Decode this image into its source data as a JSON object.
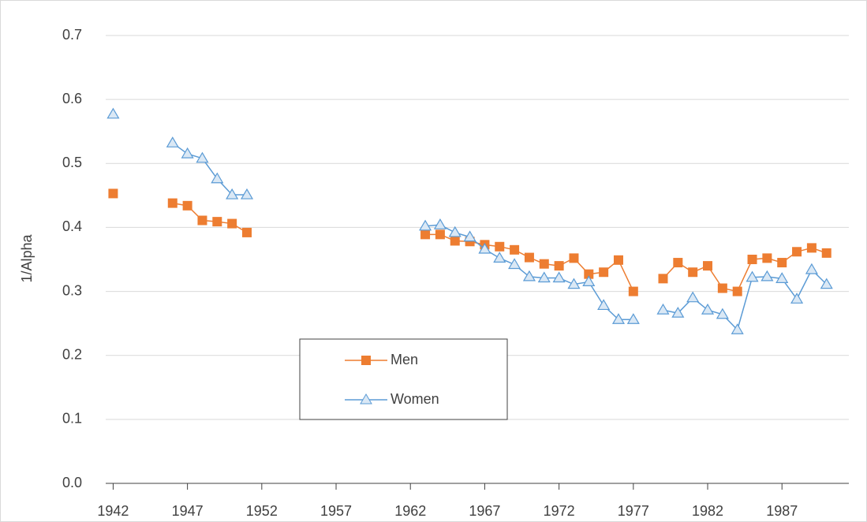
{
  "chart_data": {
    "type": "line",
    "y_label": "1/Alpha",
    "x": [
      1942,
      1943,
      1944,
      1945,
      1946,
      1947,
      1948,
      1949,
      1950,
      1951,
      1952,
      1953,
      1954,
      1955,
      1956,
      1957,
      1958,
      1959,
      1960,
      1961,
      1962,
      1963,
      1964,
      1965,
      1966,
      1967,
      1968,
      1969,
      1970,
      1971,
      1972,
      1973,
      1974,
      1975,
      1976,
      1977,
      1978,
      1979,
      1980,
      1981,
      1982,
      1983,
      1984,
      1985,
      1986,
      1987,
      1988,
      1989,
      1990
    ],
    "series": [
      {
        "name": "Men",
        "color": "#ED7D31",
        "marker": "square",
        "values": [
          0.453,
          null,
          null,
          null,
          0.438,
          0.434,
          0.411,
          0.409,
          0.406,
          0.392,
          null,
          null,
          null,
          null,
          null,
          null,
          null,
          null,
          null,
          null,
          null,
          0.389,
          0.389,
          0.379,
          0.378,
          0.373,
          0.37,
          0.365,
          0.353,
          0.343,
          0.34,
          0.352,
          0.327,
          0.33,
          0.349,
          0.3,
          null,
          0.32,
          0.345,
          0.33,
          0.34,
          0.305,
          0.3,
          0.35,
          0.352,
          0.345,
          0.362,
          0.368,
          0.36
        ]
      },
      {
        "name": "Women",
        "color": "#5B9BD5",
        "marker": "triangle",
        "values": [
          0.577,
          null,
          null,
          null,
          0.532,
          0.515,
          0.508,
          0.476,
          0.451,
          0.451,
          null,
          null,
          null,
          null,
          null,
          null,
          null,
          null,
          null,
          null,
          null,
          0.402,
          0.404,
          0.392,
          0.385,
          0.366,
          0.352,
          0.342,
          0.323,
          0.321,
          0.321,
          0.311,
          0.315,
          0.278,
          0.256,
          0.256,
          null,
          0.271,
          0.266,
          0.29,
          0.271,
          0.264,
          0.24,
          0.322,
          0.323,
          0.32,
          0.288,
          0.334,
          0.311
        ]
      }
    ],
    "xlim": [
      1941.5,
      1991.5
    ],
    "xticks": [
      1942,
      1947,
      1952,
      1957,
      1962,
      1967,
      1972,
      1977,
      1982,
      1987
    ],
    "ylim": [
      0,
      0.7
    ],
    "yticks": [
      {
        "value": 0,
        "label": "0.0"
      },
      0.1,
      0.2,
      0.3,
      0.4,
      0.5,
      0.6,
      0.7
    ],
    "grid": true
  }
}
